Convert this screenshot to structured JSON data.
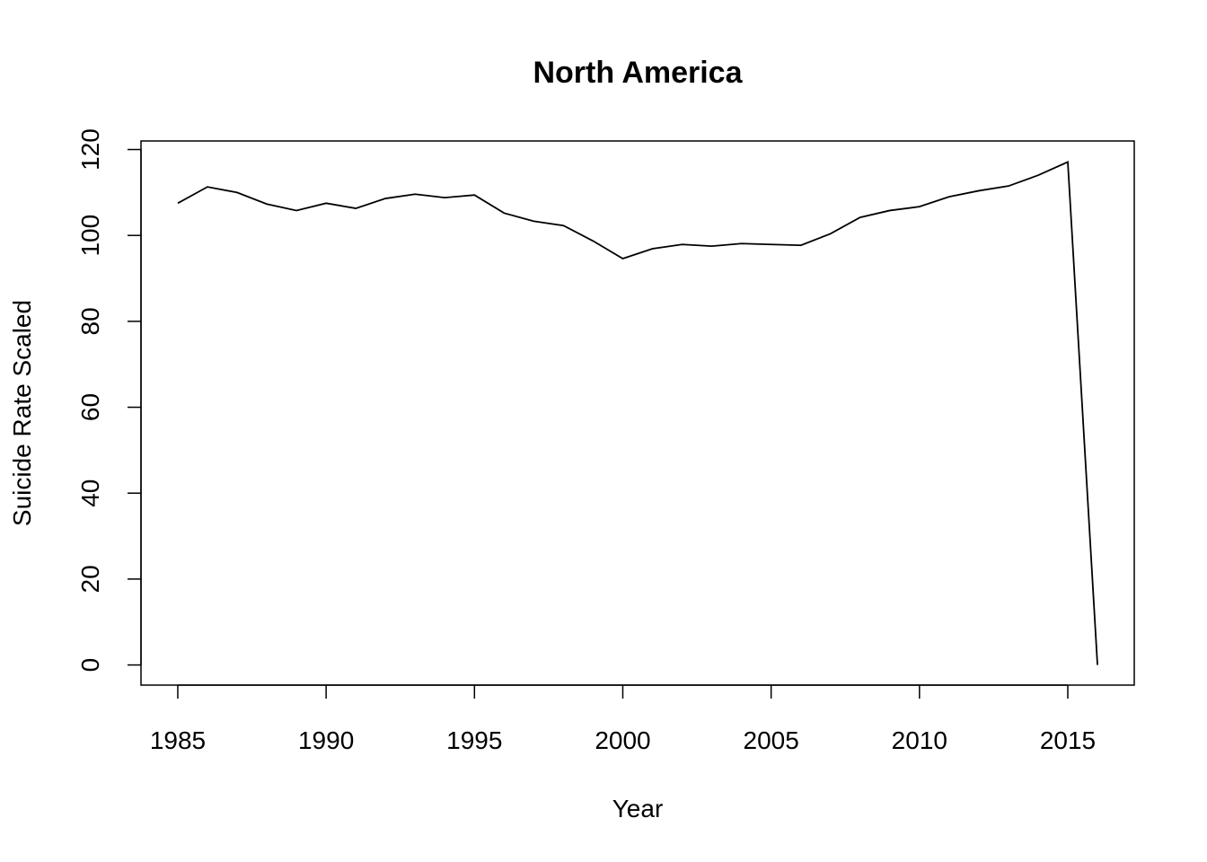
{
  "chart_data": {
    "type": "line",
    "title": "North America",
    "xlabel": "Year",
    "ylabel": "Suicide Rate Scaled",
    "x": [
      1985,
      1986,
      1987,
      1988,
      1989,
      1990,
      1991,
      1992,
      1993,
      1994,
      1995,
      1996,
      1997,
      1998,
      1999,
      2000,
      2001,
      2002,
      2003,
      2004,
      2005,
      2006,
      2007,
      2008,
      2009,
      2010,
      2011,
      2012,
      2013,
      2014,
      2015,
      2016
    ],
    "values": [
      107.5,
      111.3,
      110.0,
      107.3,
      105.8,
      107.5,
      106.3,
      108.6,
      109.6,
      108.8,
      109.4,
      105.2,
      103.3,
      102.3,
      98.7,
      94.6,
      96.9,
      97.9,
      97.5,
      98.1,
      97.9,
      97.7,
      100.4,
      104.2,
      105.8,
      106.7,
      109.0,
      110.4,
      111.5,
      114.0,
      117.1,
      0
    ],
    "color": "#000000",
    "xlim": [
      1983.76,
      2017.24
    ],
    "xticks": [
      1985,
      1990,
      1995,
      2000,
      2005,
      2010,
      2015
    ],
    "ylim": [
      -4.69,
      121.99
    ],
    "yticks": [
      0,
      20,
      40,
      60,
      80,
      100,
      120
    ]
  }
}
